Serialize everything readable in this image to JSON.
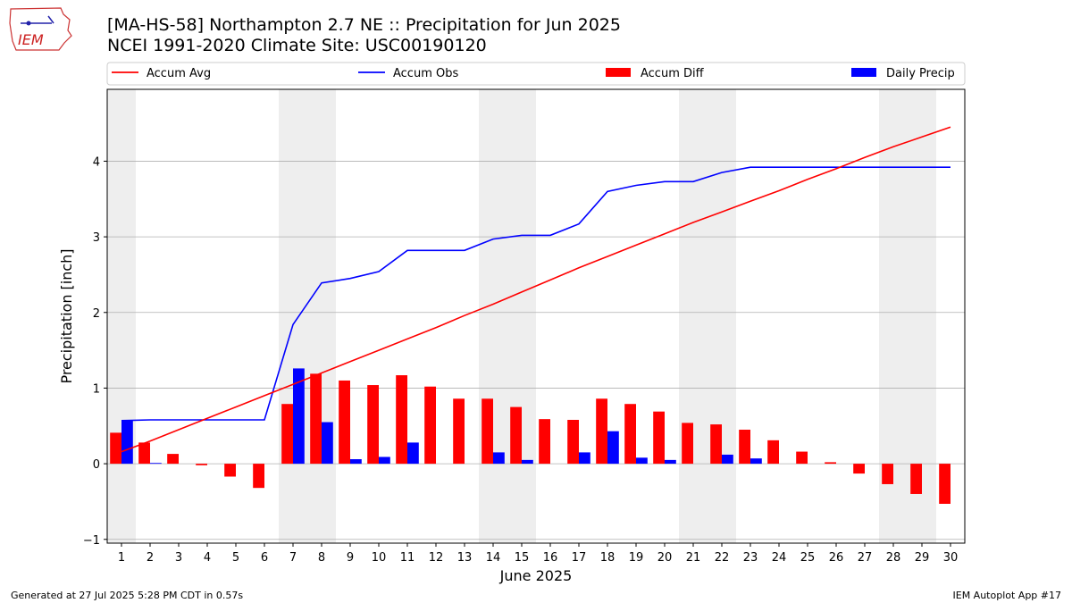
{
  "header": {
    "title_line1": "[MA-HS-58] Northampton 2.7 NE :: Precipitation for Jun 2025",
    "title_line2": "NCEI 1991-2020 Climate Site: USC00190120",
    "logo_text": "IEM"
  },
  "footer": {
    "generated": "Generated at 27 Jul 2025 5:28 PM CDT in 0.57s",
    "app": "IEM Autoplot App #17"
  },
  "colors": {
    "accum_avg": "#ff0000",
    "accum_obs": "#0000ff",
    "accum_diff": "#ff0000",
    "daily_precip": "#0000ff",
    "weekend_shade": "#eeeeee",
    "grid": "#b0b0b0"
  },
  "chart_data": {
    "type": "bar",
    "xlabel": "June 2025",
    "ylabel": "Precipitation [inch]",
    "ylim": [
      -1.05,
      4.95
    ],
    "yticks": [
      -1,
      0,
      1,
      2,
      3,
      4
    ],
    "grid": "horizontal",
    "legend_placement": "top, above plot",
    "categories": [
      "1",
      "2",
      "3",
      "4",
      "5",
      "6",
      "7",
      "8",
      "9",
      "10",
      "11",
      "12",
      "13",
      "14",
      "15",
      "16",
      "17",
      "18",
      "19",
      "20",
      "21",
      "22",
      "23",
      "24",
      "25",
      "26",
      "27",
      "28",
      "29",
      "30"
    ],
    "shaded_days": [
      1,
      7,
      8,
      14,
      15,
      21,
      22,
      28,
      29
    ],
    "series": [
      {
        "name": "Accum Avg",
        "kind": "line",
        "values": [
          0.16,
          0.3,
          0.45,
          0.6,
          0.75,
          0.9,
          1.05,
          1.2,
          1.35,
          1.5,
          1.65,
          1.8,
          1.96,
          2.11,
          2.27,
          2.43,
          2.59,
          2.74,
          2.89,
          3.04,
          3.19,
          3.33,
          3.47,
          3.61,
          3.76,
          3.9,
          4.05,
          4.19,
          4.32,
          4.45
        ]
      },
      {
        "name": "Accum Obs",
        "kind": "line",
        "values": [
          0.57,
          0.58,
          0.58,
          0.58,
          0.58,
          0.58,
          1.84,
          2.39,
          2.45,
          2.54,
          2.82,
          2.82,
          2.82,
          2.97,
          3.02,
          3.02,
          3.17,
          3.6,
          3.68,
          3.73,
          3.73,
          3.85,
          3.92,
          3.92,
          3.92,
          3.92,
          3.92,
          3.92,
          3.92,
          3.92
        ]
      },
      {
        "name": "Accum Diff",
        "kind": "bar",
        "values": [
          0.41,
          0.28,
          0.13,
          -0.02,
          -0.17,
          -0.32,
          0.79,
          1.19,
          1.1,
          1.04,
          1.17,
          1.02,
          0.86,
          0.86,
          0.75,
          0.59,
          0.58,
          0.86,
          0.79,
          0.69,
          0.54,
          0.52,
          0.45,
          0.31,
          0.16,
          0.02,
          -0.13,
          -0.27,
          -0.4,
          -0.53
        ]
      },
      {
        "name": "Daily Precip",
        "kind": "bar",
        "values": [
          0.57,
          0.01,
          0,
          0,
          0,
          0,
          1.26,
          0.55,
          0.06,
          0.09,
          0.28,
          0,
          0,
          0.15,
          0.05,
          0,
          0.15,
          0.43,
          0.08,
          0.05,
          0,
          0.12,
          0.07,
          0,
          0,
          0,
          0,
          0,
          0,
          0
        ]
      }
    ]
  }
}
